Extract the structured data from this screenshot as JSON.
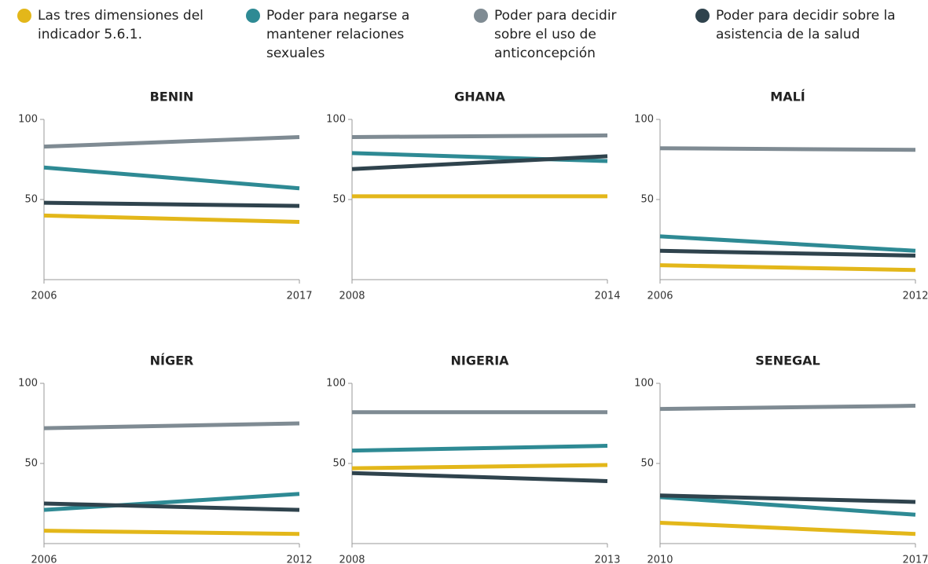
{
  "legend": [
    {
      "name": "Las tres dimensiones del indicador 5.6.1.",
      "color": "#e3b71a"
    },
    {
      "name": "Poder para negarse a mantener relaciones sexuales",
      "color": "#2e8a94"
    },
    {
      "name": "Poder para decidir sobre el uso de anticoncepción",
      "color": "#7f8b93"
    },
    {
      "name": "Poder para decidir sobre la asistencia de la salud",
      "color": "#2f434d"
    }
  ],
  "chart_data": [
    {
      "type": "line",
      "title": "BENIN",
      "x": [
        2006,
        2017
      ],
      "xlim": [
        2006,
        2017
      ],
      "xticks": [
        2006,
        2017
      ],
      "ylim": [
        0,
        100
      ],
      "yticks": [
        50,
        100
      ],
      "series": [
        {
          "values": [
            40,
            36
          ]
        },
        {
          "values": [
            70,
            57
          ]
        },
        {
          "values": [
            83,
            89
          ]
        },
        {
          "values": [
            48,
            46
          ]
        }
      ]
    },
    {
      "type": "line",
      "title": "GHANA",
      "x": [
        2008,
        2014
      ],
      "xlim": [
        2008,
        2014
      ],
      "xticks": [
        2008,
        2014
      ],
      "ylim": [
        0,
        100
      ],
      "yticks": [
        50,
        100
      ],
      "series": [
        {
          "values": [
            52,
            52
          ]
        },
        {
          "values": [
            79,
            74
          ]
        },
        {
          "values": [
            89,
            90
          ]
        },
        {
          "values": [
            69,
            77
          ]
        }
      ]
    },
    {
      "type": "line",
      "title": "MALÍ",
      "x": [
        2006,
        2012
      ],
      "xlim": [
        2006,
        2012
      ],
      "xticks": [
        2006,
        2012
      ],
      "ylim": [
        0,
        100
      ],
      "yticks": [
        50,
        100
      ],
      "series": [
        {
          "values": [
            9,
            6
          ]
        },
        {
          "values": [
            27,
            18
          ]
        },
        {
          "values": [
            82,
            81
          ]
        },
        {
          "values": [
            18,
            15
          ]
        }
      ]
    },
    {
      "type": "line",
      "title": "NÍGER",
      "x": [
        2006,
        2012
      ],
      "xlim": [
        2006,
        2012
      ],
      "xticks": [
        2006,
        2012
      ],
      "ylim": [
        0,
        100
      ],
      "yticks": [
        50,
        100
      ],
      "series": [
        {
          "values": [
            8,
            6
          ]
        },
        {
          "values": [
            21,
            31
          ]
        },
        {
          "values": [
            72,
            75
          ]
        },
        {
          "values": [
            25,
            21
          ]
        }
      ]
    },
    {
      "type": "line",
      "title": "NIGERIA",
      "x": [
        2008,
        2013
      ],
      "xlim": [
        2008,
        2013
      ],
      "xticks": [
        2008,
        2013
      ],
      "ylim": [
        0,
        100
      ],
      "yticks": [
        50,
        100
      ],
      "series": [
        {
          "values": [
            47,
            49
          ]
        },
        {
          "values": [
            58,
            61
          ]
        },
        {
          "values": [
            82,
            82
          ]
        },
        {
          "values": [
            44,
            39
          ]
        }
      ]
    },
    {
      "type": "line",
      "title": "SENEGAL",
      "x": [
        2010,
        2017
      ],
      "xlim": [
        2010,
        2017
      ],
      "xticks": [
        2010,
        2017
      ],
      "ylim": [
        0,
        100
      ],
      "yticks": [
        50,
        100
      ],
      "series": [
        {
          "values": [
            13,
            6
          ]
        },
        {
          "values": [
            29,
            18
          ]
        },
        {
          "values": [
            84,
            86
          ]
        },
        {
          "values": [
            30,
            26
          ]
        }
      ]
    }
  ]
}
